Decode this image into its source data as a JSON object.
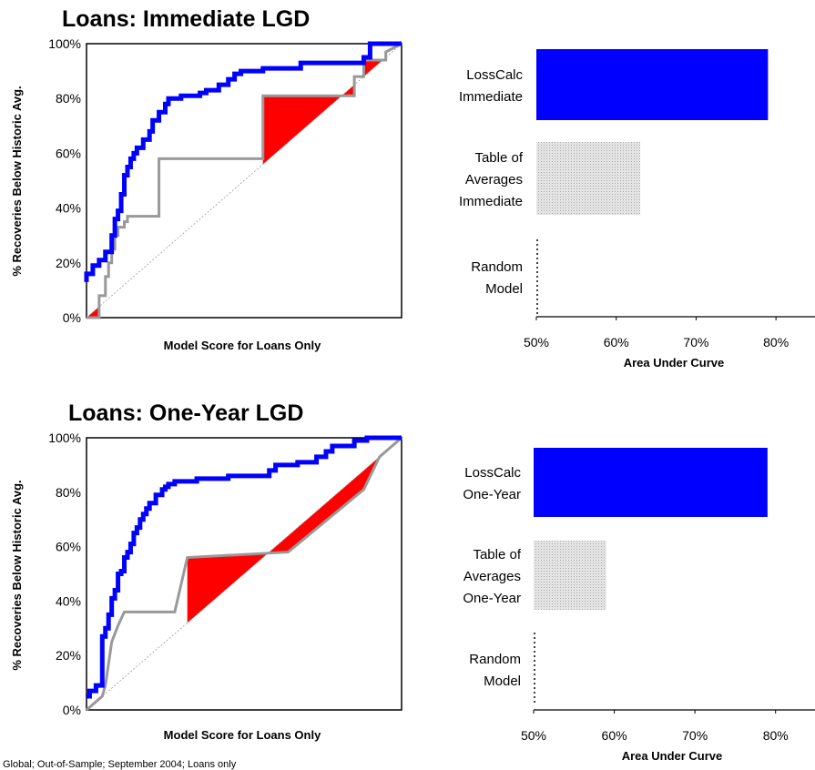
{
  "colors": {
    "losscalc": "#0000ff",
    "table_of_averages": "#999999",
    "random": "#999999",
    "shortfall": "#ff0000",
    "table_bar_fill": "#d6d6d6"
  },
  "footnote": "Global; Out-of-Sample; September 2004; Loans only",
  "chart_data": [
    {
      "type": "line",
      "title": "Loans: Immediate LGD",
      "xlabel": "Model Score for Loans Only",
      "ylabel": "% Recoveries Below Historic Avg.",
      "yticks": [
        "0%",
        "20%",
        "40%",
        "60%",
        "80%",
        "100%"
      ],
      "xlim": [
        0,
        1
      ],
      "ylim": [
        0,
        1
      ],
      "grid": false,
      "series": [
        {
          "name": "LossCalc",
          "color": "#0000ff",
          "x": [
            0,
            0,
            0.02,
            0.02,
            0.04,
            0.04,
            0.06,
            0.06,
            0.08,
            0.08,
            0.09,
            0.09,
            0.1,
            0.1,
            0.11,
            0.11,
            0.12,
            0.12,
            0.13,
            0.13,
            0.14,
            0.14,
            0.15,
            0.15,
            0.16,
            0.16,
            0.18,
            0.18,
            0.2,
            0.2,
            0.21,
            0.21,
            0.23,
            0.23,
            0.25,
            0.25,
            0.26,
            0.26,
            0.28,
            0.28,
            0.3,
            0.3,
            0.32,
            0.32,
            0.36,
            0.36,
            0.38,
            0.38,
            0.42,
            0.42,
            0.45,
            0.45,
            0.47,
            0.47,
            0.49,
            0.49,
            0.51,
            0.51,
            0.56,
            0.56,
            0.68,
            0.68,
            0.72,
            0.72,
            0.88,
            0.88,
            0.9,
            0.9,
            1
          ],
          "y": [
            0.13,
            0.16,
            0.16,
            0.19,
            0.19,
            0.21,
            0.21,
            0.24,
            0.24,
            0.3,
            0.3,
            0.36,
            0.36,
            0.39,
            0.39,
            0.45,
            0.45,
            0.52,
            0.52,
            0.55,
            0.55,
            0.58,
            0.58,
            0.6,
            0.6,
            0.62,
            0.62,
            0.65,
            0.65,
            0.68,
            0.68,
            0.72,
            0.72,
            0.75,
            0.75,
            0.78,
            0.78,
            0.8,
            0.8,
            0.8,
            0.8,
            0.81,
            0.81,
            0.81,
            0.81,
            0.82,
            0.82,
            0.83,
            0.83,
            0.85,
            0.85,
            0.87,
            0.87,
            0.89,
            0.89,
            0.9,
            0.9,
            0.9,
            0.9,
            0.91,
            0.91,
            0.93,
            0.93,
            0.93,
            0.93,
            0.95,
            0.95,
            1,
            1
          ]
        },
        {
          "name": "Table of Averages",
          "color": "#999999",
          "x": [
            0,
            0.04,
            0.04,
            0.06,
            0.06,
            0.07,
            0.07,
            0.08,
            0.08,
            0.09,
            0.09,
            0.1,
            0.1,
            0.12,
            0.12,
            0.13,
            0.13,
            0.15,
            0.15,
            0.23,
            0.23,
            0.56,
            0.56,
            0.85,
            0.85,
            0.88,
            0.88,
            0.95,
            0.95,
            1
          ],
          "y": [
            0,
            0,
            0.08,
            0.08,
            0.15,
            0.15,
            0.2,
            0.2,
            0.25,
            0.25,
            0.3,
            0.3,
            0.33,
            0.33,
            0.35,
            0.35,
            0.37,
            0.37,
            0.37,
            0.37,
            0.58,
            0.58,
            0.81,
            0.81,
            0.88,
            0.88,
            0.94,
            0.94,
            0.97,
            1
          ]
        },
        {
          "name": "Random Model",
          "color": "#999999",
          "dashed": true,
          "x": [
            0,
            1
          ],
          "y": [
            0,
            1
          ]
        }
      ]
    },
    {
      "type": "bar",
      "orientation": "horizontal",
      "categories": [
        "LossCalc\nImmediate",
        "Table of\nAverages\nImmediate",
        "Random\nModel"
      ],
      "values": [
        79,
        63,
        50
      ],
      "xlabel": "Area Under Curve",
      "xticks": [
        "50%",
        "60%",
        "70%",
        "80%"
      ],
      "xlim": [
        50,
        85
      ]
    },
    {
      "type": "line",
      "title": "Loans: One-Year LGD",
      "xlabel": "Model Score for Loans Only",
      "ylabel": "% Recoveries Below Historic Avg.",
      "yticks": [
        "0%",
        "20%",
        "40%",
        "60%",
        "80%",
        "100%"
      ],
      "xlim": [
        0,
        1
      ],
      "ylim": [
        0,
        1
      ],
      "grid": false,
      "series": [
        {
          "name": "LossCalc",
          "color": "#0000ff",
          "x": [
            0,
            0.01,
            0.01,
            0.03,
            0.03,
            0.05,
            0.05,
            0.06,
            0.06,
            0.07,
            0.07,
            0.08,
            0.08,
            0.09,
            0.09,
            0.1,
            0.1,
            0.11,
            0.11,
            0.12,
            0.12,
            0.13,
            0.13,
            0.14,
            0.14,
            0.15,
            0.15,
            0.16,
            0.16,
            0.17,
            0.17,
            0.18,
            0.18,
            0.19,
            0.19,
            0.2,
            0.2,
            0.22,
            0.22,
            0.23,
            0.23,
            0.24,
            0.24,
            0.25,
            0.25,
            0.26,
            0.26,
            0.27,
            0.27,
            0.28,
            0.28,
            0.3,
            0.3,
            0.32,
            0.32,
            0.35,
            0.35,
            0.45,
            0.45,
            0.58,
            0.58,
            0.6,
            0.6,
            0.67,
            0.67,
            0.73,
            0.73,
            0.76,
            0.76,
            0.78,
            0.78,
            0.79,
            0.79,
            0.85,
            0.85,
            0.89,
            0.89,
            1
          ],
          "y": [
            0.05,
            0.05,
            0.07,
            0.07,
            0.09,
            0.09,
            0.27,
            0.27,
            0.3,
            0.3,
            0.35,
            0.35,
            0.41,
            0.41,
            0.44,
            0.44,
            0.5,
            0.5,
            0.51,
            0.51,
            0.56,
            0.56,
            0.58,
            0.58,
            0.61,
            0.61,
            0.65,
            0.65,
            0.67,
            0.67,
            0.7,
            0.7,
            0.72,
            0.72,
            0.74,
            0.74,
            0.76,
            0.76,
            0.79,
            0.79,
            0.79,
            0.79,
            0.81,
            0.81,
            0.82,
            0.82,
            0.83,
            0.83,
            0.83,
            0.83,
            0.84,
            0.84,
            0.84,
            0.84,
            0.84,
            0.84,
            0.85,
            0.85,
            0.86,
            0.86,
            0.88,
            0.88,
            0.9,
            0.9,
            0.91,
            0.91,
            0.93,
            0.93,
            0.95,
            0.95,
            0.97,
            0.97,
            0.97,
            0.97,
            0.99,
            0.99,
            1,
            1
          ]
        },
        {
          "name": "Table of Averages",
          "color": "#999999",
          "x": [
            0,
            0.02,
            0.02,
            0.05,
            0.05,
            0.06,
            0.06,
            0.08,
            0.08,
            0.1,
            0.1,
            0.12,
            0.12,
            0.28,
            0.28,
            0.32,
            0.32,
            0.64,
            0.64,
            0.88,
            0.88,
            0.93,
            0.93,
            1
          ],
          "y": [
            0,
            0.02,
            0.02,
            0.05,
            0.05,
            0.09,
            0.09,
            0.25,
            0.25,
            0.31,
            0.31,
            0.36,
            0.36,
            0.36,
            0.36,
            0.56,
            0.56,
            0.58,
            0.58,
            0.81,
            0.81,
            0.93,
            0.93,
            1
          ]
        },
        {
          "name": "Random Model",
          "color": "#999999",
          "dashed": true,
          "x": [
            0,
            1
          ],
          "y": [
            0,
            1
          ]
        }
      ]
    },
    {
      "type": "bar",
      "orientation": "horizontal",
      "categories": [
        "LossCalc\nOne-Year",
        "Table of\nAverages\nOne-Year",
        "Random\nModel"
      ],
      "values": [
        79,
        59,
        50
      ],
      "xlabel": "Area Under Curve",
      "xticks": [
        "50%",
        "60%",
        "70%",
        "80%"
      ],
      "xlim": [
        50,
        85
      ]
    }
  ]
}
